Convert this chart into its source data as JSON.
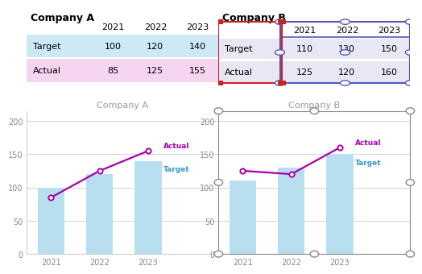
{
  "company_a": {
    "title": "Company A",
    "years": [
      2021,
      2022,
      2023
    ],
    "target": [
      100,
      120,
      140
    ],
    "actual": [
      85,
      125,
      155
    ],
    "target_row_bg": "#cce9f5",
    "actual_row_bg": "#f5d5f0",
    "bar_color": "#b8dff0",
    "line_color": "#aa00aa",
    "marker_face": "#ffffff",
    "label_actual_color": "#aa00aa",
    "label_target_color": "#3399cc"
  },
  "company_b": {
    "title": "Company B",
    "years": [
      2021,
      2022,
      2023
    ],
    "target": [
      110,
      130,
      150
    ],
    "actual": [
      125,
      120,
      160
    ],
    "target_row_bg": "#e8e8f5",
    "actual_row_bg": "#e8e8f5",
    "bar_color": "#b8dff0",
    "line_color": "#aa00aa",
    "marker_face": "#ffffff",
    "label_actual_color": "#aa00aa",
    "label_target_color": "#3399cc",
    "table_border_color": "#5555bb",
    "row_label_border_color": "#cc2222"
  },
  "ylim": [
    0,
    215
  ],
  "yticks": [
    0,
    50,
    100,
    150,
    200
  ],
  "bg_color": "#ffffff",
  "chart_bg": "#ffffff",
  "grid_color": "#cccccc",
  "title_color": "#999999",
  "axis_color": "#888888",
  "handle_color": "#888888"
}
